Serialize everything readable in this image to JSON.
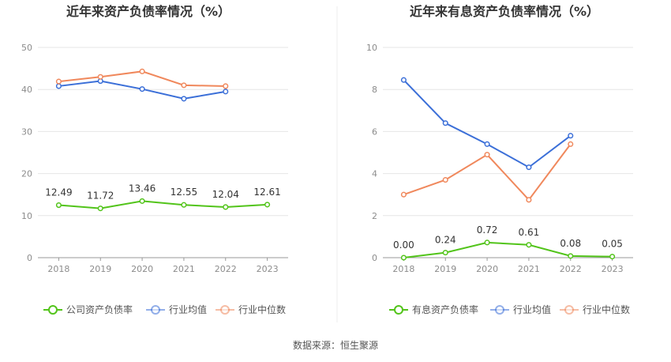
{
  "source": "数据来源：恒生聚源",
  "chart_data": [
    {
      "type": "line",
      "title": "近年来资产负债率情况（%）",
      "categories": [
        "2018",
        "2019",
        "2020",
        "2021",
        "2022",
        "2023"
      ],
      "ylim": [
        0,
        50
      ],
      "yticks": [
        0,
        10,
        20,
        30,
        40,
        50
      ],
      "grid": true,
      "legend_position": "bottom",
      "series": [
        {
          "name": "公司资产负债率",
          "color": "#52c41a",
          "values": [
            12.49,
            11.72,
            13.46,
            12.55,
            12.04,
            12.61
          ],
          "labels": [
            "12.49",
            "11.72",
            "13.46",
            "12.55",
            "12.04",
            "12.61"
          ]
        },
        {
          "name": "行业均值",
          "color": "#3b6fd8",
          "values": [
            40.8,
            42.0,
            40.1,
            37.8,
            39.5,
            null
          ]
        },
        {
          "name": "行业中位数",
          "color": "#f0885c",
          "values": [
            41.9,
            43.0,
            44.3,
            41.0,
            40.8,
            null
          ]
        }
      ]
    },
    {
      "type": "line",
      "title": "近年来有息资产负债率情况（%）",
      "categories": [
        "2018",
        "2019",
        "2020",
        "2021",
        "2022",
        "2023"
      ],
      "ylim": [
        0,
        10
      ],
      "yticks": [
        0,
        2,
        4,
        6,
        8,
        10
      ],
      "grid": true,
      "legend_position": "bottom",
      "series": [
        {
          "name": "有息资产负债率",
          "color": "#52c41a",
          "values": [
            0.0,
            0.24,
            0.72,
            0.61,
            0.08,
            0.05
          ],
          "labels": [
            "0.00",
            "0.24",
            "0.72",
            "0.61",
            "0.08",
            "0.05"
          ]
        },
        {
          "name": "行业均值",
          "color": "#3b6fd8",
          "values": [
            8.45,
            6.4,
            5.4,
            4.3,
            5.8,
            null
          ]
        },
        {
          "name": "行业中位数",
          "color": "#f0885c",
          "values": [
            3.0,
            3.7,
            4.9,
            2.75,
            5.4,
            null
          ]
        }
      ]
    }
  ]
}
